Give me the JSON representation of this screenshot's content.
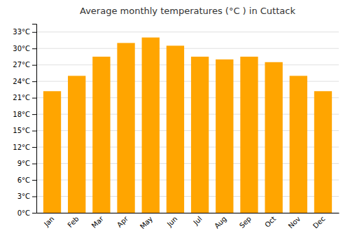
{
  "chart_data": {
    "type": "bar",
    "title": "Average monthly temperatures (°C ) in Cuttack",
    "categories": [
      "Jan",
      "Feb",
      "Mar",
      "Apr",
      "May",
      "Jun",
      "Jul",
      "Aug",
      "Sep",
      "Oct",
      "Nov",
      "Dec"
    ],
    "values": [
      22.2,
      25.0,
      28.5,
      31.0,
      32.0,
      30.5,
      28.5,
      28.0,
      28.5,
      27.5,
      25.0,
      22.2
    ],
    "color": "#ffa500",
    "ylim": [
      0,
      34.5
    ],
    "yticks": [
      {
        "value": 0,
        "label": "0°C"
      },
      {
        "value": 3,
        "label": "3°C"
      },
      {
        "value": 6,
        "label": "6°C"
      },
      {
        "value": 9,
        "label": "9°C"
      },
      {
        "value": 12,
        "label": "12°C"
      },
      {
        "value": 15,
        "label": "15°C"
      },
      {
        "value": 18,
        "label": "18°C"
      },
      {
        "value": 21,
        "label": "21°C"
      },
      {
        "value": 24,
        "label": "24°C"
      },
      {
        "value": 27,
        "label": "27°C"
      },
      {
        "value": 30,
        "label": "30°C"
      },
      {
        "value": 33,
        "label": "33°C"
      }
    ],
    "grid": true
  }
}
